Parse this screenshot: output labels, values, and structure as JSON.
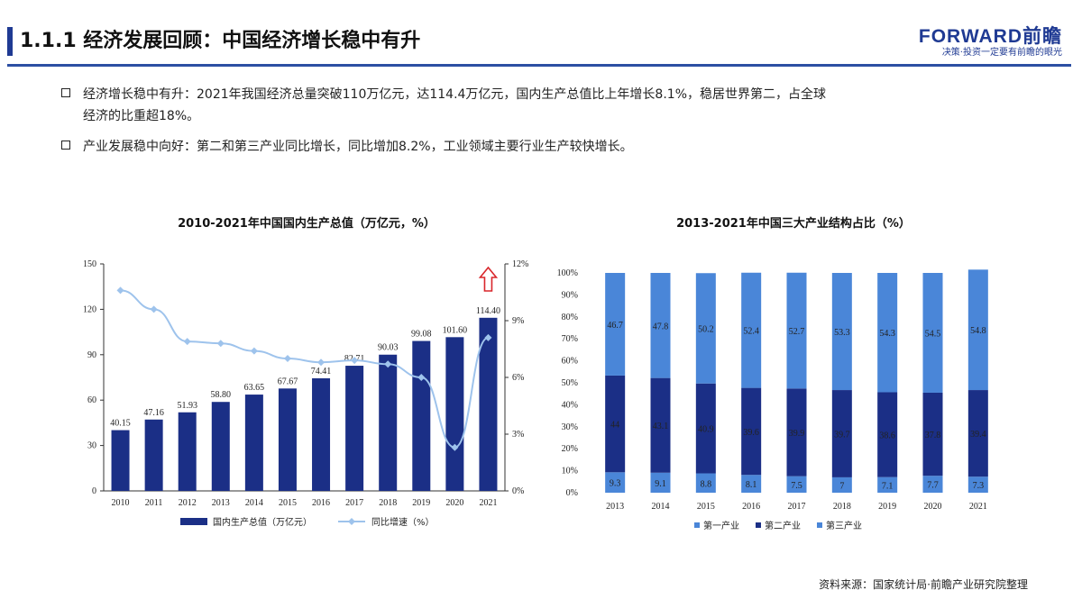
{
  "header": {
    "title": "1.1.1 经济发展回顾：中国经济增长稳中有升",
    "logo_main": "FORWARD前瞻",
    "logo_sub": "决策·投资一定要有前瞻的眼光"
  },
  "bullets": [
    {
      "line1": "经济增长稳中有升：2021年我国经济总量突破110万亿元，达114.4万亿元，国内生产总值比上年增长8.1%，稳居世界第二，占全球",
      "line2": "经济的比重超18%。"
    },
    {
      "line1": "产业发展稳中向好：第二和第三产业同比增长，同比增加8.2%，工业领域主要行业生产较快增长。",
      "line2": ""
    }
  ],
  "source": "资料来源：国家统计局·前瞻产业研究院整理",
  "colors": {
    "brand": "#1f3a93",
    "bar": "#1b2f86",
    "line": "#9ec3ec",
    "tertiary": "#4a86d8",
    "primary": "#4a86d8",
    "secondary": "#1b2f86"
  },
  "chart_data": [
    {
      "type": "bar",
      "title": "2010-2021年中国国内生产总值（万亿元，%）",
      "categories": [
        "2010",
        "2011",
        "2012",
        "2013",
        "2014",
        "2015",
        "2016",
        "2017",
        "2018",
        "2019",
        "2020",
        "2021"
      ],
      "series": [
        {
          "name": "国内生产总值（万亿元）",
          "type": "bar",
          "axis": "left",
          "values": [
            40.15,
            47.16,
            51.93,
            58.8,
            63.65,
            67.67,
            74.41,
            82.71,
            90.03,
            99.08,
            101.6,
            114.4
          ],
          "labels": [
            "40.15",
            "47.16",
            "51.93",
            "58.80",
            "63.65",
            "67.67",
            "74.41",
            "82.71",
            "90.03",
            "99.08",
            "101.60",
            "114.40"
          ]
        },
        {
          "name": "同比增速（%）",
          "type": "line",
          "axis": "right",
          "values": [
            10.6,
            9.6,
            7.9,
            7.8,
            7.4,
            7.0,
            6.8,
            6.9,
            6.7,
            6.0,
            2.3,
            8.1
          ]
        }
      ],
      "ylim": [
        0,
        150
      ],
      "yticks": [
        "0",
        "30",
        "60",
        "90",
        "120",
        "150"
      ],
      "y2lim": [
        0,
        12
      ],
      "y2ticks": [
        "0%",
        "3%",
        "6%",
        "9%",
        "12%"
      ],
      "grid": false,
      "legend_position": "bottom"
    },
    {
      "type": "bar",
      "stacked": true,
      "title": "2013-2021年中国三大产业结构占比（%）",
      "categories": [
        "2013",
        "2014",
        "2015",
        "2016",
        "2017",
        "2018",
        "2019",
        "2020",
        "2021"
      ],
      "series": [
        {
          "name": "第一产业",
          "values": [
            9.3,
            9.1,
            8.8,
            8.1,
            7.5,
            7,
            7.1,
            7.7,
            7.3
          ],
          "labels": [
            "9.3",
            "9.1",
            "8.8",
            "8.1",
            "7.5",
            "7",
            "7.1",
            "7.7",
            "7.3"
          ]
        },
        {
          "name": "第二产业",
          "values": [
            44,
            43.1,
            40.9,
            39.6,
            39.9,
            39.7,
            38.6,
            37.8,
            39.4
          ],
          "labels": [
            "44",
            "43.1",
            "40.9",
            "39.6",
            "39.9",
            "39.7",
            "38.6",
            "37.8",
            "39.4"
          ]
        },
        {
          "name": "第三产业",
          "values": [
            46.7,
            47.8,
            50.2,
            52.4,
            52.7,
            53.3,
            54.3,
            54.5,
            54.8
          ],
          "labels": [
            "46.7",
            "47.8",
            "50.2",
            "52.4",
            "52.7",
            "53.3",
            "54.3",
            "54.5",
            "54.8"
          ]
        }
      ],
      "ylim": [
        0,
        100
      ],
      "yticks": [
        "0%",
        "10%",
        "20%",
        "30%",
        "40%",
        "50%",
        "60%",
        "70%",
        "80%",
        "90%",
        "100%"
      ],
      "grid": false,
      "legend_position": "bottom"
    }
  ]
}
